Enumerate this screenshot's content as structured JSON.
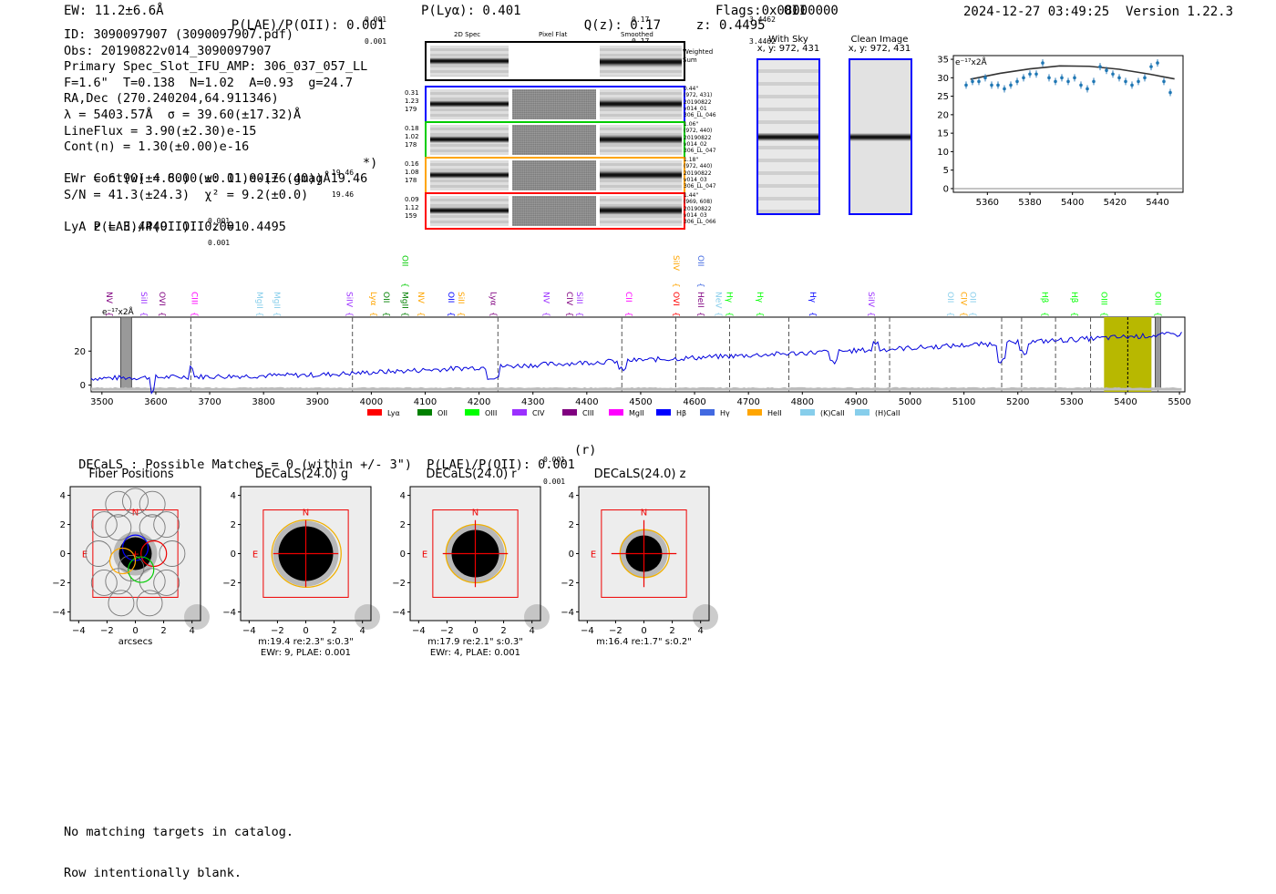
{
  "header": {
    "ew": "EW: 11.2±6.6Å",
    "plae_label": "P(LAE)/P(OII): 0.001",
    "plae_sup": "0.001",
    "plae_sub": "0.001",
    "plya": "P(Lyα): 0.401",
    "qz_label": "Q(z): 0.17",
    "qz_sup": "0.17",
    "qz_sub": "0.17",
    "z_label": "z: 0.4495",
    "z_sup": "3.4462",
    "z_sub": "3.4462",
    "z_line": "OII",
    "flags": "Flags:0x08000000",
    "timestamp": "2024-12-27 03:49:25",
    "version": "Version 1.22.3"
  },
  "info": {
    "lines": [
      "ID: 3090097907 (3090097907.pdf)",
      "Obs: 20190822v014_3090097907",
      "Primary Spec_Slot_IFU_AMP: 306_037_057_LL",
      "F=1.6\"  T=0.138  N=1.02  A=0.93  g=24.7",
      "RA,Dec (270.240204,64.911346)",
      "λ = 5403.57Å  σ = 39.60(±17.32)Å",
      "LineFlux = 3.90(±2.30)e-15",
      "Cont(n) = 1.30(±0.00)e-16",
      "Cont(w) = 8.00(±0.01)e-17 (gmag 19.46",
      "EWr = 6.90(±4.60) (w: 11.00(±6.40))Å",
      "S/N = 41.3(±24.3)  χ² = 9.2(±0.0)",
      "P(LAE)/P(OII): 0.001",
      "LyA z = 3.4449  OII z = 0.4495"
    ],
    "gmag_sup": "19.46",
    "gmag_sub": "19.46",
    "gmag_close": "*)",
    "plae_sup": "0.001",
    "plae_sub": "0.001"
  },
  "cutouts": {
    "col_headers": [
      "2D Spec",
      "Pixel Flat",
      "Smoothed"
    ],
    "weighted_sum": "Weighted Sum",
    "rows": [
      {
        "left": [
          "0.31",
          "1.23",
          "179"
        ],
        "right": [
          "0.44\"",
          "(972, 431)",
          "20190822",
          "v014_01",
          "306_LL_046"
        ],
        "color": "#0000ff"
      },
      {
        "left": [
          "0.18",
          "1.02",
          "178"
        ],
        "right": [
          "1.06\"",
          "(972, 440)",
          "20190822",
          "v014_02",
          "306_LL_047"
        ],
        "color": "#00cc00"
      },
      {
        "left": [
          "0.16",
          "1.08",
          "178"
        ],
        "right": [
          "1.18\"",
          "(972, 440)",
          "20190822",
          "v014_03",
          "306_LL_047"
        ],
        "color": "#ffa500"
      },
      {
        "left": [
          "0.09",
          "1.12",
          "159"
        ],
        "right": [
          "1.44\"",
          "(969, 608)",
          "20190822",
          "v014_03",
          "306_LL_066"
        ],
        "color": "#ff0000"
      }
    ]
  },
  "sky_panels": {
    "with_sky_title": "With Sky",
    "with_sky_xy": "x, y: 972, 431",
    "clean_title": "Clean Image",
    "clean_xy": "x, y: 972, 431"
  },
  "line_fit_chart": {
    "unit_label": "e⁻¹⁷x2Å",
    "type": "scatter",
    "x": [
      5350,
      5353,
      5356,
      5359,
      5362,
      5365,
      5368,
      5371,
      5374,
      5377,
      5380,
      5383,
      5386,
      5389,
      5392,
      5395,
      5398,
      5401,
      5404,
      5407,
      5410,
      5413,
      5416,
      5419,
      5422,
      5425,
      5428,
      5431,
      5434,
      5437,
      5440,
      5443,
      5446
    ],
    "y": [
      28,
      29,
      29,
      30,
      28,
      28,
      27,
      28,
      29,
      30,
      31,
      31,
      34,
      30,
      29,
      30,
      29,
      30,
      28,
      27,
      29,
      33,
      32,
      31,
      30,
      29,
      28,
      29,
      30,
      33,
      34,
      29,
      26
    ],
    "fit_x": [
      5352,
      5366,
      5380,
      5394,
      5408,
      5422,
      5436,
      5448
    ],
    "fit_y": [
      29.6,
      31.2,
      32.4,
      33.2,
      33.1,
      32.3,
      31.0,
      29.7
    ],
    "xticks": [
      "5360",
      "5380",
      "5400",
      "5420",
      "5440"
    ],
    "yticks": [
      "0",
      "5",
      "10",
      "15",
      "20",
      "25",
      "30",
      "35"
    ],
    "xlim": [
      5344,
      5452
    ],
    "ylim": [
      -1,
      36
    ]
  },
  "full_spectrum": {
    "unit_label": "e⁻¹⁷x2Å",
    "yticks": [
      "0",
      "20"
    ],
    "xticks": [
      "3500",
      "3600",
      "3700",
      "3800",
      "3900",
      "4000",
      "4100",
      "4200",
      "4300",
      "4400",
      "4500",
      "4600",
      "4700",
      "4800",
      "4900",
      "5000",
      "5100",
      "5200",
      "5300",
      "5400",
      "5500"
    ],
    "xlim": [
      3480,
      5510
    ],
    "ylim": [
      -4,
      40
    ],
    "legend": [
      {
        "label": "Lyα",
        "color": "#ff0000"
      },
      {
        "label": "OII",
        "color": "#008000"
      },
      {
        "label": "OIII",
        "color": "#00ff00"
      },
      {
        "label": "CIV",
        "color": "#9b30ff"
      },
      {
        "label": "CIII",
        "color": "#800080"
      },
      {
        "label": "MgII",
        "color": "#ff00ff"
      },
      {
        "label": "Hβ",
        "color": "#0000ff"
      },
      {
        "label": "Hγ",
        "color": "#4169e1"
      },
      {
        "label": "HeII",
        "color": "#ffa500"
      },
      {
        "label": "(K)CaII",
        "color": "#87ceeb"
      },
      {
        "label": "(H)CaII",
        "color": "#87ceeb"
      }
    ],
    "line_labels": [
      {
        "label": "NV",
        "wave": 3514,
        "color": "#800080",
        "row": 1
      },
      {
        "label": "SiII",
        "wave": 3578,
        "color": "#9b30ff",
        "row": 1
      },
      {
        "label": "OVI",
        "wave": 3612,
        "color": "#800080",
        "row": 1
      },
      {
        "label": "CIII",
        "wave": 3672,
        "color": "#ff00ff",
        "row": 1
      },
      {
        "label": "MgII",
        "wave": 3793,
        "color": "#87ceeb",
        "row": 1
      },
      {
        "label": "MgII",
        "wave": 3825,
        "color": "#87ceeb",
        "row": 1
      },
      {
        "label": "SiIV",
        "wave": 3960,
        "color": "#9b30ff",
        "row": 1
      },
      {
        "label": "Lyα",
        "wave": 4004,
        "color": "#ffa500",
        "row": 1
      },
      {
        "label": "OII",
        "wave": 4028,
        "color": "#008000",
        "row": 1
      },
      {
        "label": "MgII",
        "wave": 4063,
        "color": "#008000",
        "row": 1
      },
      {
        "label": "OII",
        "wave": 4063,
        "color": "#00cc00",
        "row": 0
      },
      {
        "label": "NV",
        "wave": 4092,
        "color": "#ffa500",
        "row": 1
      },
      {
        "label": "OII",
        "wave": 4148,
        "color": "#0000ff",
        "row": 1
      },
      {
        "label": "SiII",
        "wave": 4167,
        "color": "#ffa500",
        "row": 1
      },
      {
        "label": "Lyα",
        "wave": 4227,
        "color": "#800080",
        "row": 1
      },
      {
        "label": "NV",
        "wave": 4325,
        "color": "#9b30ff",
        "row": 1
      },
      {
        "label": "CIV",
        "wave": 4368,
        "color": "#800080",
        "row": 1
      },
      {
        "label": "SiII",
        "wave": 4387,
        "color": "#9b30ff",
        "row": 1
      },
      {
        "label": "CII",
        "wave": 4478,
        "color": "#ff00ff",
        "row": 1
      },
      {
        "label": "OVI",
        "wave": 4566,
        "color": "#ff0000",
        "row": 1
      },
      {
        "label": "SiIV",
        "wave": 4566,
        "color": "#ffa500",
        "row": 0
      },
      {
        "label": "HeII",
        "wave": 4612,
        "color": "#800080",
        "row": 1
      },
      {
        "label": "OII",
        "wave": 4612,
        "color": "#4169e1",
        "row": 0
      },
      {
        "label": "NeV",
        "wave": 4645,
        "color": "#87ceeb",
        "row": 1
      },
      {
        "label": "Hγ",
        "wave": 4665,
        "color": "#00ff00",
        "row": 1
      },
      {
        "label": "Hγ",
        "wave": 4722,
        "color": "#00ff00",
        "row": 1
      },
      {
        "label": "Hγ",
        "wave": 4820,
        "color": "#0000ff",
        "row": 1
      },
      {
        "label": "SiIV",
        "wave": 4928,
        "color": "#9b30ff",
        "row": 1
      },
      {
        "label": "OII",
        "wave": 5075,
        "color": "#87ceeb",
        "row": 1
      },
      {
        "label": "CIV",
        "wave": 5100,
        "color": "#ffa500",
        "row": 1
      },
      {
        "label": "OII",
        "wave": 5117,
        "color": "#87ceeb",
        "row": 1
      },
      {
        "label": "Hβ",
        "wave": 5250,
        "color": "#00ff00",
        "row": 1
      },
      {
        "label": "Hβ",
        "wave": 5305,
        "color": "#00ff00",
        "row": 1
      },
      {
        "label": "OIII",
        "wave": 5360,
        "color": "#00ff00",
        "row": 1
      },
      {
        "label": "OIII",
        "wave": 5460,
        "color": "#00ff00",
        "row": 1
      }
    ],
    "dashed_lines": [
      3665,
      3965,
      4235,
      4465,
      4565,
      4665,
      4775,
      4935,
      4962,
      5170,
      5207,
      5270,
      5335,
      5460
    ],
    "highlight_range": [
      5360,
      5448
    ],
    "highlight_center": 5404
  },
  "decals": {
    "summary": "DECaLS : Possible Matches = 0 (within +/- 3\")  P(LAE)/P(OII): 0.001",
    "summary_sup": "0.001",
    "summary_sub": "0.001",
    "summary_band": "(r)",
    "panels": [
      {
        "title": "Fiber Positions",
        "caption1": "arcsecs",
        "caption2": ""
      },
      {
        "title": "DECaLS(24.0) g",
        "caption1": "m:19.4  re:2.3\"  s:0.3\"",
        "caption2": "EWr: 9, PLAE: 0.001"
      },
      {
        "title": "DECaLS(24.0) r",
        "caption1": "m:17.9  re:2.1\"  s:0.3\"",
        "caption2": "EWr: 4, PLAE: 0.001"
      },
      {
        "title": "DECaLS(24.0) z",
        "caption1": "m:16.4  re:1.7\"  s:0.2\"",
        "caption2": ""
      }
    ],
    "north": "N",
    "east": "E",
    "ticks": [
      "−4",
      "−2",
      "0",
      "2",
      "4"
    ]
  },
  "footer": {
    "line1": "No matching targets in catalog.",
    "line2": "Row intentionally blank."
  }
}
